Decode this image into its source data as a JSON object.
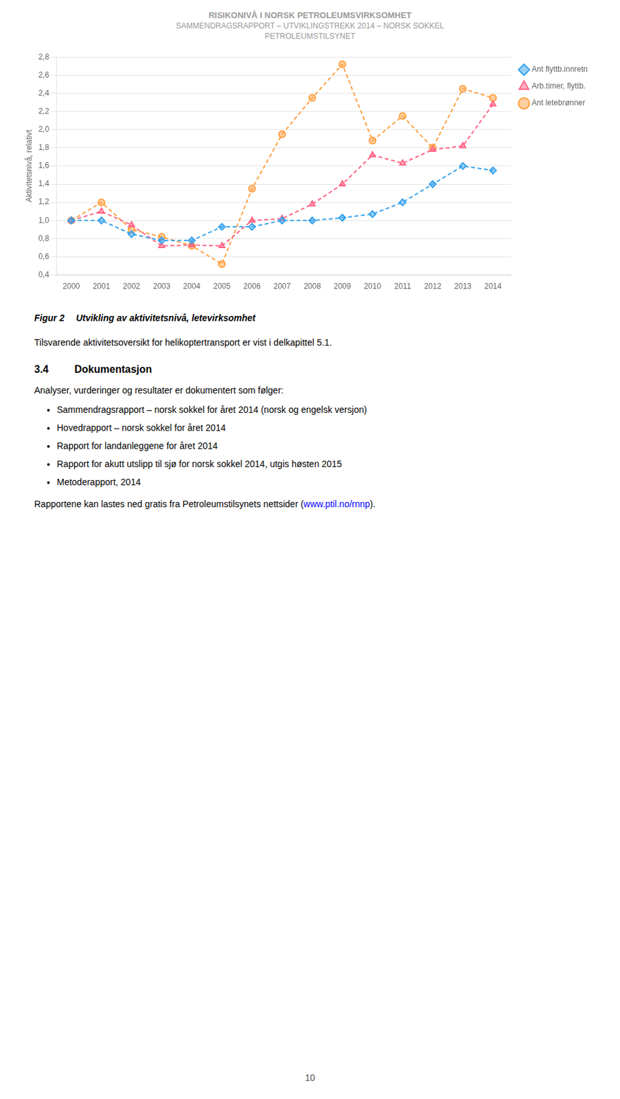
{
  "header": [
    "RISIKONIVÅ I NORSK PETROLEUMSVIRKSOMHET",
    "SAMMENDRAGSRAPPORT – UTVIKLINGSTREKK 2014 – NORSK SOKKEL",
    "PETROLEUMSTILSYNET"
  ],
  "chart_data": {
    "type": "line",
    "y_label": "Aktivitetsnivå, relativt",
    "x": [
      2000,
      2001,
      2002,
      2003,
      2004,
      2005,
      2006,
      2007,
      2008,
      2009,
      2010,
      2011,
      2012,
      2013,
      2014
    ],
    "series": [
      {
        "name": "Ant flyttb.innretn",
        "marker": "diamond",
        "line_style": "dashed",
        "values": [
          1.0,
          1.0,
          0.85,
          0.78,
          0.78,
          0.93,
          0.93,
          1.0,
          1.0,
          1.03,
          1.07,
          1.2,
          1.4,
          1.6,
          1.55
        ]
      },
      {
        "name": "Arb.timer, flyttb.",
        "marker": "triangle",
        "line_style": "dashed",
        "values": [
          1.0,
          1.1,
          0.95,
          0.72,
          0.73,
          0.72,
          1.0,
          1.02,
          1.18,
          1.4,
          1.72,
          1.63,
          1.78,
          1.82,
          2.28
        ]
      },
      {
        "name": "Ant letebrønner",
        "marker": "circle",
        "line_style": "dashed",
        "values": [
          1.0,
          1.2,
          0.9,
          0.82,
          0.72,
          0.52,
          1.35,
          1.95,
          2.35,
          2.72,
          1.88,
          2.15,
          1.8,
          2.45,
          2.35
        ]
      }
    ],
    "xlim": [
      1999.5,
      2014.6
    ],
    "xticks": [
      2000,
      2001,
      2002,
      2003,
      2004,
      2005,
      2006,
      2007,
      2008,
      2009,
      2010,
      2011,
      2012,
      2013,
      2014
    ],
    "ylim": [
      0.4,
      2.8
    ],
    "yticks": [
      {
        "value": 0.4,
        "label": "0,4"
      },
      {
        "value": 0.6,
        "label": "0,6"
      },
      {
        "value": 0.8,
        "label": "0,8"
      },
      {
        "value": 1.0,
        "label": "1,0"
      },
      {
        "value": 1.2,
        "label": "1,2"
      },
      {
        "value": 1.4,
        "label": "1,4"
      },
      {
        "value": 1.6,
        "label": "1,6"
      },
      {
        "value": 1.8,
        "label": "1,8"
      },
      {
        "value": 2.0,
        "label": "2,0"
      },
      {
        "value": 2.2,
        "label": "2,2"
      },
      {
        "value": 2.4,
        "label": "2,4"
      },
      {
        "value": 2.6,
        "label": "2,6"
      },
      {
        "value": 2.8,
        "label": "2,8"
      }
    ],
    "grid": "y",
    "legend": "right"
  },
  "caption": [
    "Figur 2",
    "Utvikling av aktivitetsnivå, letevirksomhet"
  ],
  "para1": "Tilsvarende aktivitetsoversikt for helikoptertransport er vist i delkapittel 5.1.",
  "section": [
    "3.4",
    "Dokumentasjon"
  ],
  "section_body": "Analyser, vurderinger og resultater er dokumentert som følger:",
  "bullets": [
    "Sammendragsrapport – norsk sokkel for året 2014 (norsk og engelsk versjon)",
    "Hovedrapport – norsk sokkel for året 2014",
    "Rapport for landanleggene for året 2014",
    "Rapport for akutt utslipp til sjø for norsk sokkel 2014, utgis høsten 2015",
    "Metoderapport, 2014"
  ],
  "last_paragraph": [
    "Rapportene kan lastes ned gratis fra Petroleumstilsynets nettsider (",
    "www.ptil.no/rnnp",
    ")."
  ],
  "page_number": "10"
}
